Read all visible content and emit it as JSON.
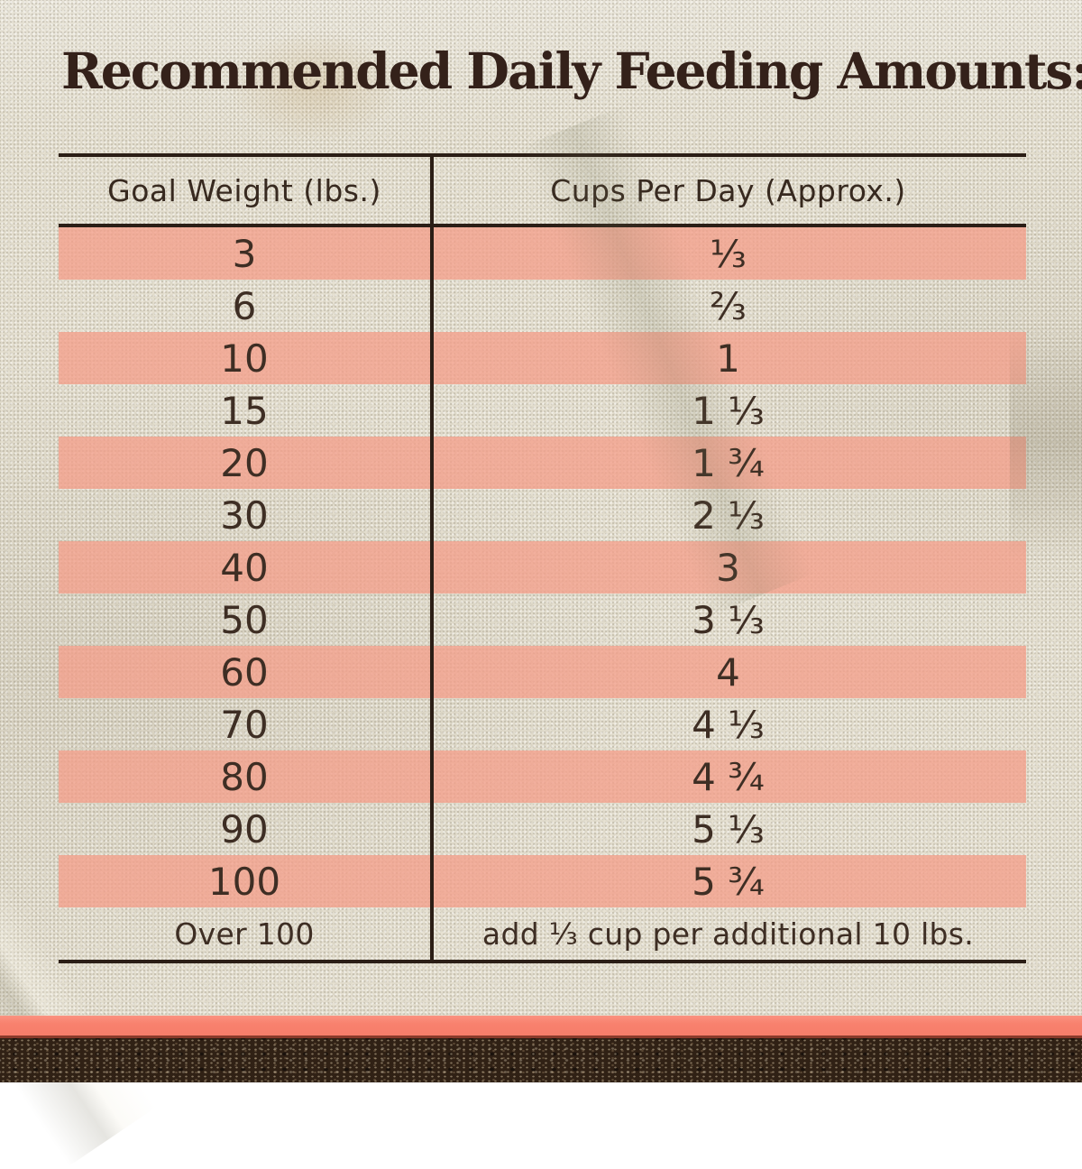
{
  "title": "Recommended Daily Feeding Amounts:",
  "table": {
    "columns": [
      "Goal Weight (lbs.)",
      "Cups Per Day (Approx.)"
    ],
    "rows": [
      {
        "weight": "3",
        "cups": "⅓"
      },
      {
        "weight": "6",
        "cups": "⅔"
      },
      {
        "weight": "10",
        "cups": "1"
      },
      {
        "weight": "15",
        "cups": "1 ⅓"
      },
      {
        "weight": "20",
        "cups": "1 ¾"
      },
      {
        "weight": "30",
        "cups": "2 ⅓"
      },
      {
        "weight": "40",
        "cups": "3"
      },
      {
        "weight": "50",
        "cups": "3 ⅓"
      },
      {
        "weight": "60",
        "cups": "4"
      },
      {
        "weight": "70",
        "cups": "4 ⅓"
      },
      {
        "weight": "80",
        "cups": "4 ¾"
      },
      {
        "weight": "90",
        "cups": "5 ⅓"
      },
      {
        "weight": "100",
        "cups": "5 ¾"
      },
      {
        "weight": "Over 100",
        "cups": "add ⅓ cup per additional 10 lbs."
      }
    ]
  },
  "chart_data": {
    "type": "table",
    "title": "Recommended Daily Feeding Amounts:",
    "columns": [
      "Goal Weight (lbs.)",
      "Cups Per Day (Approx.)"
    ],
    "rows": [
      [
        "3",
        "⅓"
      ],
      [
        "6",
        "⅔"
      ],
      [
        "10",
        "1"
      ],
      [
        "15",
        "1 ⅓"
      ],
      [
        "20",
        "1 ¾"
      ],
      [
        "30",
        "2 ⅓"
      ],
      [
        "40",
        "3"
      ],
      [
        "50",
        "3 ⅓"
      ],
      [
        "60",
        "4"
      ],
      [
        "70",
        "4 ⅓"
      ],
      [
        "80",
        "4 ¾"
      ],
      [
        "90",
        "5 ⅓"
      ],
      [
        "100",
        "5 ¾"
      ],
      [
        "Over 100",
        "add ⅓ cup per additional 10 lbs."
      ]
    ]
  },
  "colors": {
    "stripe_pink": "#F2A896",
    "accent_coral": "#F8816E",
    "soil_brown": "#302115",
    "fabric_beige": "#E7E2D3",
    "line_dark": "#2B1E16",
    "text_dark": "#3E2E24"
  }
}
